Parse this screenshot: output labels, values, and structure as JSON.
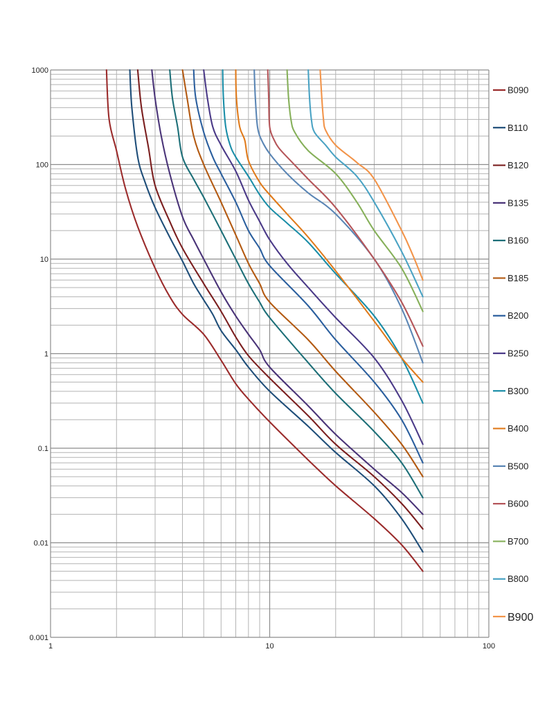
{
  "chart_data": {
    "type": "line",
    "x_scale": "log",
    "y_scale": "log",
    "xlim": [
      1,
      100
    ],
    "ylim": [
      0.001,
      1000
    ],
    "grid": true,
    "legend_position": "right",
    "x_ticks": [
      "1",
      "10",
      "100"
    ],
    "y_ticks": [
      "0.001",
      "0.01",
      "0.1",
      "1",
      "10",
      "100",
      "1000"
    ],
    "series": [
      {
        "name": "B090",
        "color": "#9b2c2c",
        "points": [
          [
            1.8,
            1000
          ],
          [
            1.85,
            300
          ],
          [
            2,
            140
          ],
          [
            2.2,
            55
          ],
          [
            2.5,
            22
          ],
          [
            3,
            8
          ],
          [
            3.5,
            4
          ],
          [
            4,
            2.6
          ],
          [
            5,
            1.6
          ],
          [
            6,
            0.85
          ],
          [
            7,
            0.48
          ],
          [
            8,
            0.33
          ],
          [
            10,
            0.19
          ],
          [
            15,
            0.075
          ],
          [
            20,
            0.04
          ],
          [
            30,
            0.018
          ],
          [
            40,
            0.0095
          ],
          [
            50,
            0.005
          ]
        ]
      },
      {
        "name": "B110",
        "color": "#1f4e79",
        "points": [
          [
            2.3,
            1000
          ],
          [
            2.35,
            400
          ],
          [
            2.5,
            120
          ],
          [
            2.7,
            65
          ],
          [
            3,
            35
          ],
          [
            3.5,
            17
          ],
          [
            4,
            9.5
          ],
          [
            4.5,
            5.5
          ],
          [
            5,
            3.7
          ],
          [
            5.5,
            2.6
          ],
          [
            6,
            1.75
          ],
          [
            7,
            1.1
          ],
          [
            8,
            0.72
          ],
          [
            10,
            0.4
          ],
          [
            15,
            0.17
          ],
          [
            20,
            0.09
          ],
          [
            30,
            0.04
          ],
          [
            40,
            0.018
          ],
          [
            50,
            0.008
          ]
        ]
      },
      {
        "name": "B120",
        "color": "#7b1f1f",
        "points": [
          [
            2.5,
            1000
          ],
          [
            2.6,
            400
          ],
          [
            2.8,
            150
          ],
          [
            3,
            60
          ],
          [
            3.5,
            25
          ],
          [
            4,
            13
          ],
          [
            5,
            5.5
          ],
          [
            6,
            2.8
          ],
          [
            7,
            1.5
          ],
          [
            8,
            0.95
          ],
          [
            10,
            0.55
          ],
          [
            15,
            0.22
          ],
          [
            20,
            0.11
          ],
          [
            30,
            0.05
          ],
          [
            40,
            0.026
          ],
          [
            50,
            0.014
          ]
        ]
      },
      {
        "name": "B135",
        "color": "#4a3478",
        "points": [
          [
            2.9,
            1000
          ],
          [
            3,
            500
          ],
          [
            3.2,
            200
          ],
          [
            3.5,
            80
          ],
          [
            4,
            28
          ],
          [
            4.5,
            16
          ],
          [
            5,
            10
          ],
          [
            6,
            4.5
          ],
          [
            7,
            2.5
          ],
          [
            8,
            1.6
          ],
          [
            9,
            1.1
          ],
          [
            10,
            0.72
          ],
          [
            15,
            0.28
          ],
          [
            20,
            0.14
          ],
          [
            30,
            0.06
          ],
          [
            40,
            0.034
          ],
          [
            50,
            0.02
          ]
        ]
      },
      {
        "name": "B160",
        "color": "#1d6f78",
        "points": [
          [
            3.5,
            1000
          ],
          [
            3.6,
            500
          ],
          [
            3.8,
            250
          ],
          [
            4,
            120
          ],
          [
            4.5,
            70
          ],
          [
            5,
            45
          ],
          [
            6,
            20
          ],
          [
            7,
            10
          ],
          [
            8,
            5.5
          ],
          [
            9,
            3.5
          ],
          [
            10,
            2.4
          ],
          [
            15,
            0.8
          ],
          [
            20,
            0.38
          ],
          [
            30,
            0.15
          ],
          [
            40,
            0.07
          ],
          [
            50,
            0.03
          ]
        ]
      },
      {
        "name": "B185",
        "color": "#b35a12",
        "points": [
          [
            4,
            1000
          ],
          [
            4.2,
            500
          ],
          [
            4.5,
            200
          ],
          [
            5,
            100
          ],
          [
            6,
            40
          ],
          [
            7,
            18
          ],
          [
            8,
            9
          ],
          [
            9,
            5.5
          ],
          [
            10,
            3.5
          ],
          [
            15,
            1.4
          ],
          [
            20,
            0.65
          ],
          [
            30,
            0.24
          ],
          [
            40,
            0.11
          ],
          [
            50,
            0.05
          ]
        ]
      },
      {
        "name": "B200",
        "color": "#2b5f9e",
        "points": [
          [
            4.5,
            1000
          ],
          [
            4.6,
            500
          ],
          [
            5,
            220
          ],
          [
            5.5,
            120
          ],
          [
            6,
            80
          ],
          [
            7,
            40
          ],
          [
            8,
            20
          ],
          [
            9,
            13
          ],
          [
            10,
            8.5
          ],
          [
            15,
            3.2
          ],
          [
            20,
            1.4
          ],
          [
            30,
            0.5
          ],
          [
            40,
            0.2
          ],
          [
            50,
            0.07
          ]
        ]
      },
      {
        "name": "B250",
        "color": "#4b3a88",
        "points": [
          [
            5,
            1000
          ],
          [
            5.2,
            500
          ],
          [
            5.5,
            250
          ],
          [
            6,
            160
          ],
          [
            7,
            85
          ],
          [
            8,
            42
          ],
          [
            9,
            25
          ],
          [
            10,
            16
          ],
          [
            12,
            9
          ],
          [
            15,
            5
          ],
          [
            20,
            2.4
          ],
          [
            30,
            0.9
          ],
          [
            40,
            0.32
          ],
          [
            50,
            0.11
          ]
        ]
      },
      {
        "name": "B300",
        "color": "#1b8ea8",
        "points": [
          [
            6.1,
            1000
          ],
          [
            6.15,
            500
          ],
          [
            6.3,
            250
          ],
          [
            6.6,
            160
          ],
          [
            7,
            120
          ],
          [
            8,
            75
          ],
          [
            9,
            48
          ],
          [
            10,
            35
          ],
          [
            12,
            24
          ],
          [
            15,
            15
          ],
          [
            20,
            7
          ],
          [
            30,
            2.5
          ],
          [
            40,
            0.9
          ],
          [
            50,
            0.3
          ]
        ]
      },
      {
        "name": "B400",
        "color": "#e07b1c",
        "points": [
          [
            7,
            1000
          ],
          [
            7.05,
            500
          ],
          [
            7.3,
            250
          ],
          [
            7.7,
            180
          ],
          [
            8,
            110
          ],
          [
            9,
            65
          ],
          [
            10,
            48
          ],
          [
            12,
            30
          ],
          [
            15,
            17
          ],
          [
            20,
            7.5
          ],
          [
            30,
            2.2
          ],
          [
            40,
            0.9
          ],
          [
            50,
            0.5
          ]
        ]
      },
      {
        "name": "B500",
        "color": "#5b86b5",
        "points": [
          [
            8.5,
            1000
          ],
          [
            8.6,
            500
          ],
          [
            8.8,
            250
          ],
          [
            9.2,
            180
          ],
          [
            10,
            130
          ],
          [
            12,
            80
          ],
          [
            15,
            50
          ],
          [
            20,
            30
          ],
          [
            30,
            10
          ],
          [
            40,
            3
          ],
          [
            50,
            0.8
          ]
        ]
      },
      {
        "name": "B600",
        "color": "#b5565a",
        "points": [
          [
            9.8,
            1000
          ],
          [
            9.9,
            500
          ],
          [
            10,
            250
          ],
          [
            10.5,
            180
          ],
          [
            11,
            150
          ],
          [
            12,
            120
          ],
          [
            15,
            70
          ],
          [
            20,
            35
          ],
          [
            30,
            10
          ],
          [
            40,
            3.5
          ],
          [
            50,
            1.2
          ]
        ]
      },
      {
        "name": "B700",
        "color": "#86b05a",
        "points": [
          [
            12,
            1000
          ],
          [
            12.2,
            500
          ],
          [
            12.5,
            300
          ],
          [
            13,
            220
          ],
          [
            15,
            140
          ],
          [
            20,
            80
          ],
          [
            25,
            40
          ],
          [
            30,
            20
          ],
          [
            40,
            8
          ],
          [
            50,
            2.8
          ]
        ]
      },
      {
        "name": "B800",
        "color": "#4aa3c4",
        "points": [
          [
            15,
            1000
          ],
          [
            15.2,
            500
          ],
          [
            15.5,
            300
          ],
          [
            16,
            220
          ],
          [
            18,
            160
          ],
          [
            20,
            120
          ],
          [
            25,
            75
          ],
          [
            30,
            40
          ],
          [
            40,
            12
          ],
          [
            50,
            4
          ]
        ]
      },
      {
        "name": "B900",
        "color": "#f2944a",
        "points": [
          [
            17,
            1000
          ],
          [
            17.3,
            500
          ],
          [
            17.6,
            300
          ],
          [
            18,
            230
          ],
          [
            20,
            160
          ],
          [
            25,
            105
          ],
          [
            30,
            70
          ],
          [
            40,
            20
          ],
          [
            45,
            11
          ],
          [
            50,
            6
          ]
        ]
      }
    ]
  }
}
